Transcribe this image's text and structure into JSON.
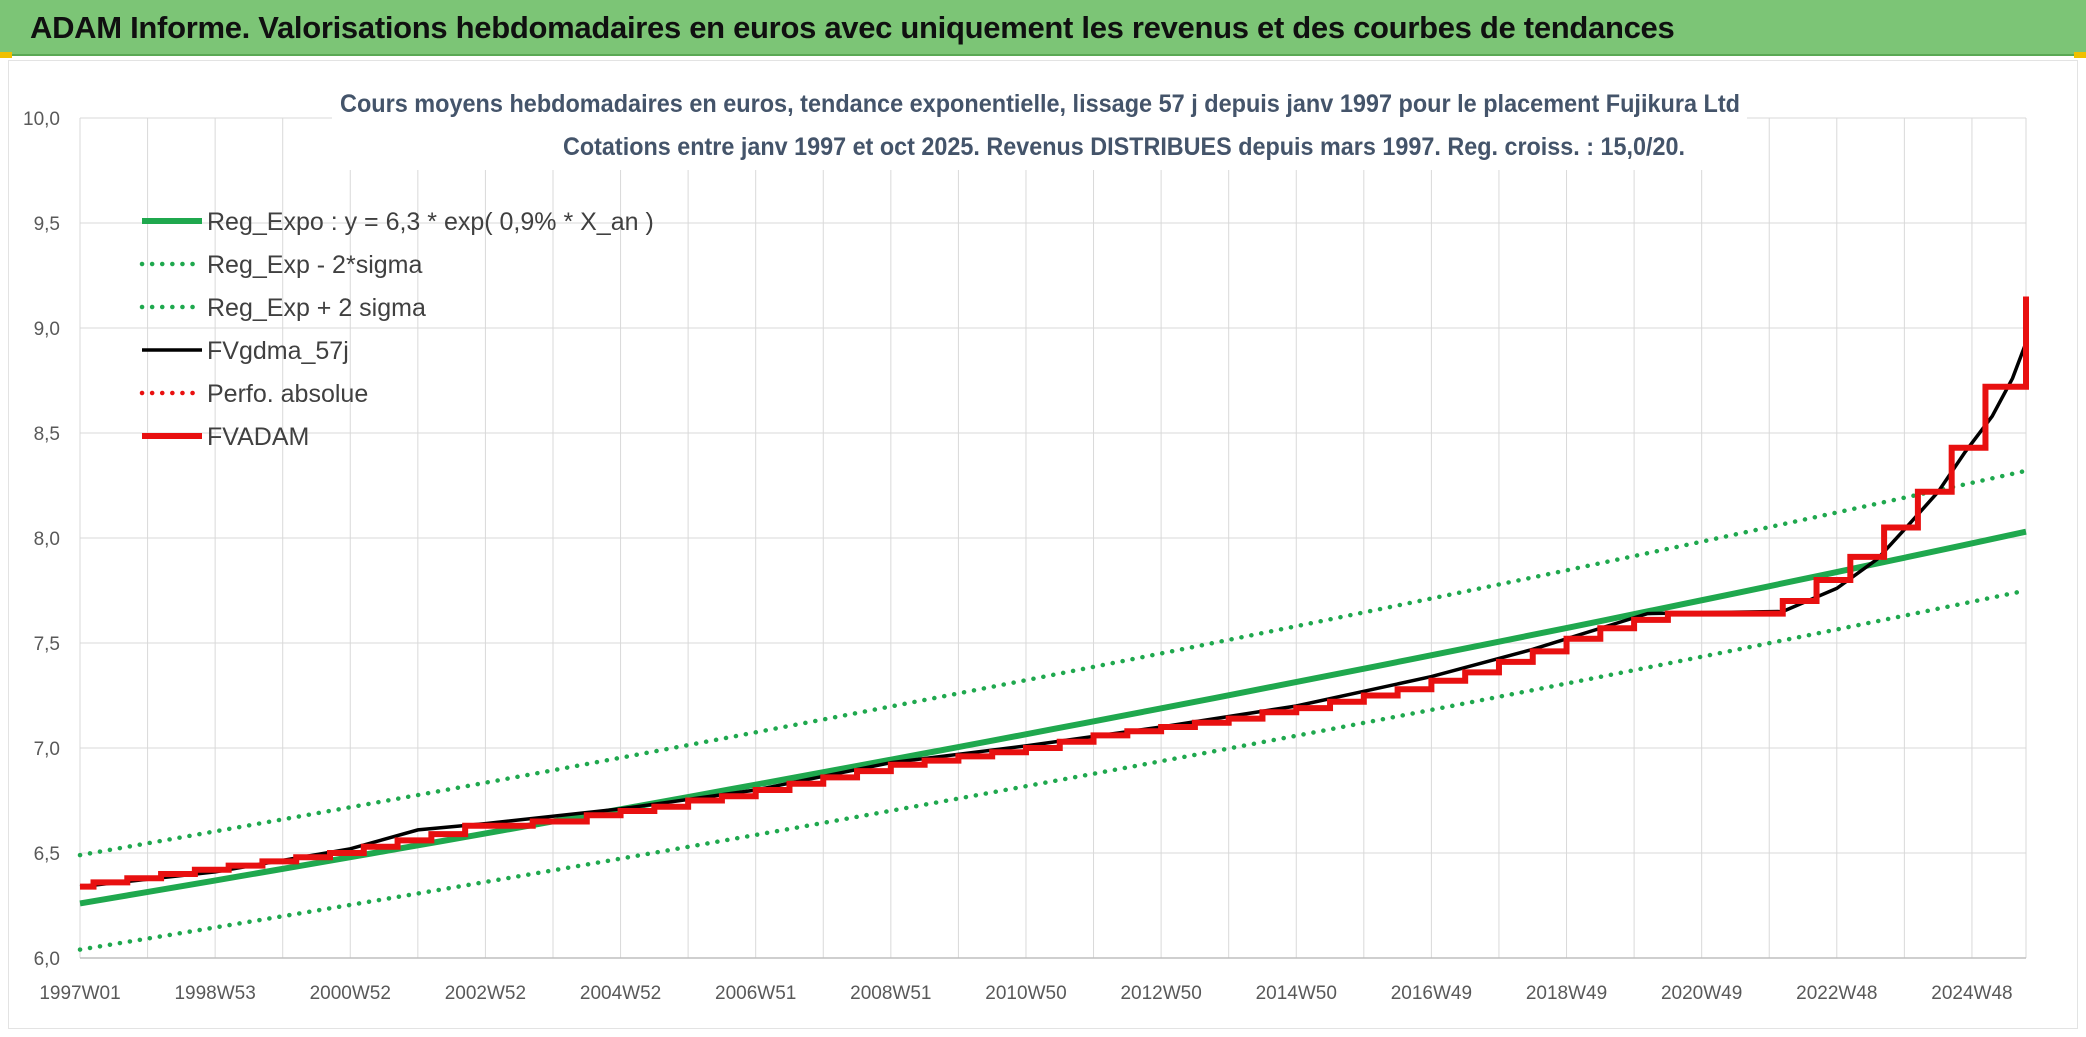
{
  "banner": {
    "title": "ADAM Informe. Valorisations hebdomadaires en euros avec uniquement les revenus et des courbes de tendances"
  },
  "colors": {
    "banner": "#7cc576",
    "reg_green": "#1fa84e",
    "black": "#000000",
    "red": "#e81010",
    "grid": "#d9d9d9"
  },
  "chart_data": {
    "type": "line",
    "title": [
      "Cours moyens hebdomadaires en euros, tendance exponentielle, lissage 57 j depuis janv 1997 pour le placement Fujikura Ltd",
      "Cotations entre janv 1997 et oct 2025. Revenus DISTRIBUES depuis mars 1997. Reg. croiss. : 15,0/20."
    ],
    "xlabel": "",
    "ylabel": "",
    "x_ticks": [
      "1997W01",
      "1998W53",
      "2000W52",
      "2002W52",
      "2004W52",
      "2006W51",
      "2008W51",
      "2010W50",
      "2012W50",
      "2014W50",
      "2016W49",
      "2018W49",
      "2020W49",
      "2022W48",
      "2024W48"
    ],
    "x_range": [
      1997.0,
      2025.8
    ],
    "ylim": [
      6.0,
      10.0
    ],
    "y_ticks": [
      "6,0",
      "6,5",
      "7,0",
      "7,5",
      "8,0",
      "8,5",
      "9,0",
      "9,5",
      "10,0"
    ],
    "grid": true,
    "legend_position": "top-left",
    "series": [
      {
        "name": "Reg_Expo : y = 6,3 * exp( 0,9% *  X_an )",
        "style": "solid",
        "color": "#1fa84e",
        "points": [
          [
            1997.0,
            6.26
          ],
          [
            2025.8,
            8.03
          ]
        ]
      },
      {
        "name": "Reg_Exp - 2*sigma",
        "style": "dotted",
        "color": "#1fa84e",
        "points": [
          [
            1997.0,
            6.04
          ],
          [
            2025.8,
            7.75
          ]
        ]
      },
      {
        "name": "Reg_Exp + 2 sigma",
        "style": "dotted",
        "color": "#1fa84e",
        "points": [
          [
            1997.0,
            6.49
          ],
          [
            2025.8,
            8.32
          ]
        ]
      },
      {
        "name": "FVgdma_57j",
        "style": "solid",
        "color": "#000000",
        "points": [
          [
            1997.0,
            6.34
          ],
          [
            1999.0,
            6.41
          ],
          [
            2001.0,
            6.52
          ],
          [
            2002.0,
            6.61
          ],
          [
            2003.0,
            6.64
          ],
          [
            2005.0,
            6.71
          ],
          [
            2007.0,
            6.8
          ],
          [
            2009.0,
            6.93
          ],
          [
            2011.0,
            7.01
          ],
          [
            2013.0,
            7.1
          ],
          [
            2015.0,
            7.2
          ],
          [
            2017.0,
            7.34
          ],
          [
            2018.5,
            7.47
          ],
          [
            2019.8,
            7.6
          ],
          [
            2020.2,
            7.64
          ],
          [
            2022.2,
            7.65
          ],
          [
            2023.0,
            7.76
          ],
          [
            2023.6,
            7.9
          ],
          [
            2024.0,
            8.04
          ],
          [
            2024.5,
            8.22
          ],
          [
            2024.9,
            8.41
          ],
          [
            2025.3,
            8.58
          ],
          [
            2025.6,
            8.76
          ],
          [
            2025.8,
            8.93
          ]
        ]
      },
      {
        "name": "Perfo. absolue",
        "style": "dotted",
        "color": "#e81010",
        "points": []
      },
      {
        "name": "FVADAM",
        "style": "solid-thick",
        "color": "#e81010",
        "steps": [
          [
            1997.0,
            6.34
          ],
          [
            1997.2,
            6.36
          ],
          [
            1997.7,
            6.38
          ],
          [
            1998.2,
            6.4
          ],
          [
            1998.7,
            6.42
          ],
          [
            1999.2,
            6.44
          ],
          [
            1999.7,
            6.46
          ],
          [
            2000.2,
            6.48
          ],
          [
            2000.7,
            6.5
          ],
          [
            2001.2,
            6.53
          ],
          [
            2001.7,
            6.56
          ],
          [
            2002.2,
            6.59
          ],
          [
            2002.7,
            6.63
          ],
          [
            2003.7,
            6.65
          ],
          [
            2004.5,
            6.68
          ],
          [
            2005.0,
            6.7
          ],
          [
            2005.5,
            6.72
          ],
          [
            2006.0,
            6.75
          ],
          [
            2006.5,
            6.77
          ],
          [
            2007.0,
            6.8
          ],
          [
            2007.5,
            6.83
          ],
          [
            2008.0,
            6.86
          ],
          [
            2008.5,
            6.89
          ],
          [
            2009.0,
            6.92
          ],
          [
            2009.5,
            6.94
          ],
          [
            2010.0,
            6.96
          ],
          [
            2010.5,
            6.98
          ],
          [
            2011.0,
            7.0
          ],
          [
            2011.5,
            7.03
          ],
          [
            2012.0,
            7.06
          ],
          [
            2012.5,
            7.08
          ],
          [
            2013.0,
            7.1
          ],
          [
            2013.5,
            7.12
          ],
          [
            2014.0,
            7.14
          ],
          [
            2014.5,
            7.17
          ],
          [
            2015.0,
            7.19
          ],
          [
            2015.5,
            7.22
          ],
          [
            2016.0,
            7.25
          ],
          [
            2016.5,
            7.28
          ],
          [
            2017.0,
            7.32
          ],
          [
            2017.5,
            7.36
          ],
          [
            2018.0,
            7.41
          ],
          [
            2018.5,
            7.46
          ],
          [
            2019.0,
            7.52
          ],
          [
            2019.5,
            7.57
          ],
          [
            2020.0,
            7.61
          ],
          [
            2020.5,
            7.64
          ],
          [
            2022.2,
            7.7
          ],
          [
            2022.7,
            7.8
          ],
          [
            2023.2,
            7.91
          ],
          [
            2023.7,
            8.05
          ],
          [
            2024.2,
            8.22
          ],
          [
            2024.7,
            8.43
          ],
          [
            2025.2,
            8.72
          ],
          [
            2025.8,
            9.15
          ]
        ]
      }
    ]
  }
}
